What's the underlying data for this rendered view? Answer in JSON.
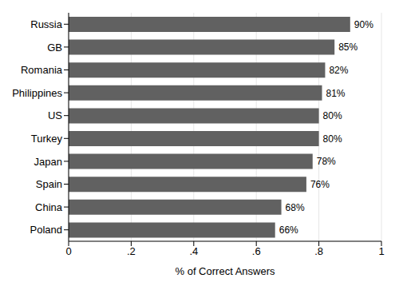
{
  "chart_data": {
    "type": "bar",
    "orientation": "horizontal",
    "x_label": "% of Correct Answers",
    "categories": [
      "Russia",
      "GB",
      "Romania",
      "Philippines",
      "US",
      "Turkey",
      "Japan",
      "Spain",
      "China",
      "Poland"
    ],
    "values": [
      0.9,
      0.85,
      0.82,
      0.81,
      0.8,
      0.8,
      0.78,
      0.76,
      0.68,
      0.66
    ],
    "value_labels": [
      "90%",
      "85%",
      "82%",
      "81%",
      "80%",
      "80%",
      "78%",
      "76%",
      "68%",
      "66%"
    ],
    "data_labels": true,
    "color": "#616161",
    "xlim": [
      0,
      1
    ],
    "xticks": [
      0,
      {
        "value": 0.2,
        "label": ".2"
      },
      {
        "value": 0.4,
        "label": ".4"
      },
      {
        "value": 0.6,
        "label": ".6"
      },
      {
        "value": 0.8,
        "label": ".8"
      },
      1
    ],
    "grid": true
  }
}
